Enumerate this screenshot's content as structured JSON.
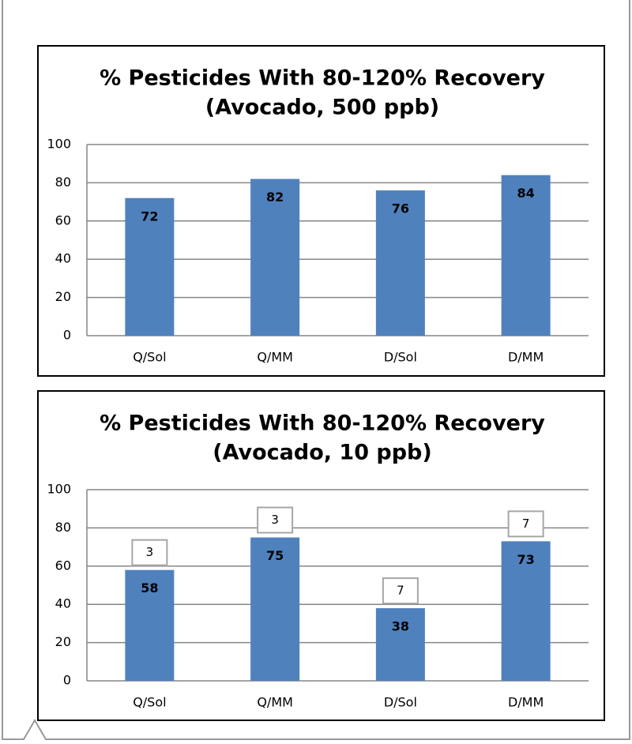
{
  "chart_data": [
    {
      "type": "bar",
      "title": [
        "% Pesticides With 80-120% Recovery",
        "(Avocado, 500 ppb)"
      ],
      "categories": [
        "Q/Sol",
        "Q/MM",
        "D/Sol",
        "D/MM"
      ],
      "values": [
        72,
        82,
        76,
        84
      ],
      "color": "#4f81bd",
      "ylim": [
        0,
        100
      ],
      "yticks": [
        0,
        20,
        40,
        60,
        80,
        100
      ],
      "grid": true
    },
    {
      "type": "bar",
      "title": [
        "% Pesticides With 80-120% Recovery",
        "(Avocado, 10 ppb)"
      ],
      "categories": [
        "Q/Sol",
        "Q/MM",
        "D/Sol",
        "D/MM"
      ],
      "values": [
        58,
        75,
        38,
        73
      ],
      "color": "#4f81bd",
      "annotations": [
        "3",
        "3",
        "7",
        "7"
      ],
      "ylim": [
        0,
        100
      ],
      "yticks": [
        0,
        20,
        40,
        60,
        80,
        100
      ],
      "grid": true
    }
  ]
}
